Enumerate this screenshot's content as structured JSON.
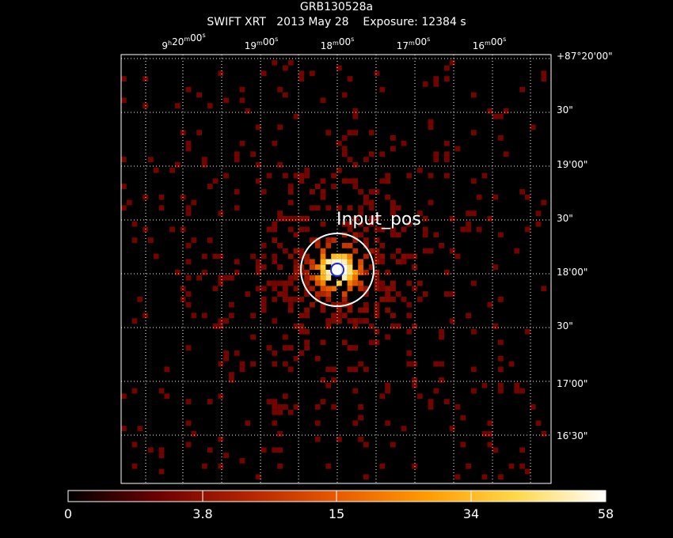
{
  "header": {
    "title": "GRB130528a",
    "instrument": "SWIFT XRT",
    "date": "2013 May 28",
    "exposure": "Exposure: 12384 s"
  },
  "image": {
    "source_label": "Input_pos",
    "colormap": [
      "#000000",
      "#6b0000",
      "#b32400",
      "#e85a00",
      "#ff9b00",
      "#ffd84a",
      "#ffffff"
    ],
    "grid_color": "#ffffff",
    "circle_outer_color": "#ffffff",
    "circle_inner_color": "#1c2bd9"
  },
  "ra_ticks": [
    {
      "h": "9",
      "m": "20",
      "s": "00"
    },
    {
      "h": "",
      "m": "19",
      "s": "00"
    },
    {
      "h": "",
      "m": "18",
      "s": "00"
    },
    {
      "h": "",
      "m": "17",
      "s": "00"
    },
    {
      "h": "",
      "m": "16",
      "s": "00"
    }
  ],
  "dec_ticks": [
    "+87°20'00\"",
    "30\"",
    "19'00\"",
    "30\"",
    "18'00\"",
    "30\"",
    "17'00\"",
    "16'30\""
  ],
  "colorbar": {
    "labels": [
      "0",
      "3.8",
      "15",
      "34",
      "58"
    ]
  }
}
